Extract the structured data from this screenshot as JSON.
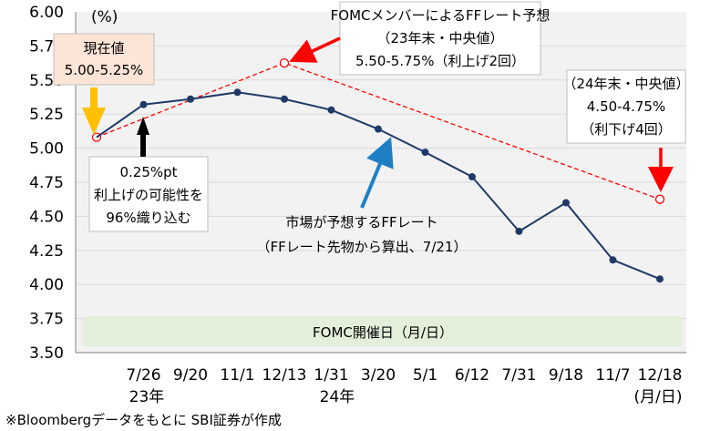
{
  "chart_data": {
    "type": "line",
    "unit_label": "(%)",
    "ylim": [
      3.5,
      6.0
    ],
    "y_ticks": [
      "6.00",
      "5.75",
      "5.50",
      "5.25",
      "5.00",
      "4.75",
      "4.50",
      "4.25",
      "4.00",
      "3.75",
      "3.50"
    ],
    "categories": [
      "",
      "7/26",
      "9/20",
      "11/1",
      "12/13",
      "1/31",
      "3/20",
      "5/1",
      "6/12",
      "7/31",
      "9/18",
      "11/7",
      "12/18"
    ],
    "year_labels": [
      "23年",
      "24年"
    ],
    "x_unit": "(月/日)",
    "band_label": "FOMC開催日（月/日）",
    "series": [
      {
        "name": "市場が予想するFFレート",
        "values": [
          5.08,
          5.32,
          5.36,
          5.41,
          5.36,
          5.28,
          5.14,
          4.97,
          4.79,
          4.39,
          4.6,
          4.18,
          4.04
        ]
      },
      {
        "name": "FOMCメンバーによるFFレート予想",
        "points": [
          [
            0,
            5.08
          ],
          [
            4,
            5.625
          ],
          [
            12,
            4.625
          ]
        ]
      }
    ],
    "annotations": {
      "current": [
        "現在値",
        "5.00-5.25%"
      ],
      "hike": [
        "0.25%pt",
        "利上げの可能性を",
        "96%織り込む"
      ],
      "fomc23": [
        "FOMCメンバーによるFFレート予想",
        "（23年末・中央値）",
        "5.50-5.75%（利上げ2回）"
      ],
      "fomc24": [
        "（24年末・中央値）",
        "4.50-4.75%",
        "（利下げ4回）"
      ],
      "market": [
        "市場が予想するFFレート",
        "（FFレート先物から算出、7/21）"
      ]
    },
    "source": "※Bloombergデータをもとに SBI証券が作成",
    "colors": {
      "market": "#1f3a68",
      "fomc": "#ff0000",
      "band": "#e2efda",
      "plot_bg": "#f2f2f2",
      "current_box": "#fce4d6",
      "arrow_yellow": "#ffc000",
      "arrow_blue": "#1f7fc4",
      "arrow_red": "#ff0000"
    }
  }
}
